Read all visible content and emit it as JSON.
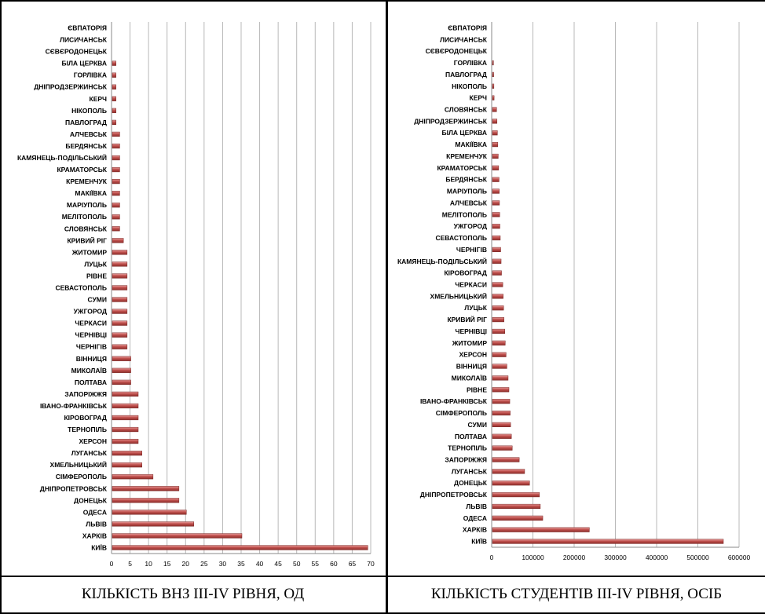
{
  "chart_data": [
    {
      "type": "bar",
      "orientation": "horizontal",
      "categories": [
        "КИЇВ",
        "ХАРКІВ",
        "ЛЬВІВ",
        "ОДЕСА",
        "ДОНЕЦЬК",
        "ДНІПРОПЕТРОВСЬК",
        "СІМФЕРОПОЛЬ",
        "ХМЕЛЬНИЦЬКИЙ",
        "ЛУГАНСЬК",
        "ХЕРСОН",
        "ТЕРНОПІЛЬ",
        "КІРОВОГРАД",
        "ІВАНО-ФРАНКІВСЬК",
        "ЗАПОРІЖЖЯ",
        "ПОЛТАВА",
        "МИКОЛАЇВ",
        "ВІННИЦЯ",
        "ЧЕРНІГІВ",
        "ЧЕРНІВЦІ",
        "ЧЕРКАСИ",
        "УЖГОРОД",
        "СУМИ",
        "СЕВАСТОПОЛЬ",
        "РІВНЕ",
        "ЛУЦЬК",
        "ЖИТОМИР",
        "КРИВИЙ РІГ",
        "СЛОВЯНСЬК",
        "МЕЛІТОПОЛЬ",
        "МАРІУПОЛЬ",
        "МАКІЇВКА",
        "КРЕМЕНЧУК",
        "КРАМАТОРСЬК",
        "КАМЯНЕЦЬ-ПОДІЛЬСЬКИЙ",
        "БЕРДЯНСЬК",
        "АЛЧЕВСЬК",
        "ПАВЛОГРАД",
        "НІКОПОЛЬ",
        "КЕРЧ",
        "ДНІПРОДЗЕРЖИНСЬК",
        "ГОРЛІВКА",
        "БІЛА ЦЕРКВА",
        "СЄВЄРОДОНЕЦЬК",
        "ЛИСИЧАНСЬК",
        "ЄВПАТОРІЯ"
      ],
      "values": [
        69,
        35,
        22,
        20,
        18,
        18,
        11,
        8,
        8,
        7,
        7,
        7,
        7,
        7,
        5,
        5,
        5,
        4,
        4,
        4,
        4,
        4,
        4,
        4,
        4,
        4,
        3,
        2,
        2,
        2,
        2,
        2,
        2,
        2,
        2,
        2,
        1,
        1,
        1,
        1,
        1,
        1,
        0,
        0,
        0
      ],
      "xlim": [
        0,
        70
      ],
      "xticks": [
        "0",
        "5",
        "10",
        "15",
        "20",
        "25",
        "30",
        "35",
        "40",
        "45",
        "50",
        "55",
        "60",
        "65",
        "70"
      ],
      "grid": true,
      "title": "КІЛЬКІСТЬ ВНЗ ІІІ-IV РІВНЯ, ОД",
      "bar_color": "#c0504d"
    },
    {
      "type": "bar",
      "orientation": "horizontal",
      "categories": [
        "КИЇВ",
        "ХАРКІВ",
        "ОДЕСА",
        "ЛЬВІВ",
        "ДНІПРОПЕТРОВСЬК",
        "ДОНЕЦЬК",
        "ЛУГАНСЬК",
        "ЗАПОРІЖЖЯ",
        "ТЕРНОПІЛЬ",
        "ПОЛТАВА",
        "СУМИ",
        "СІМФЕРОПОЛЬ",
        "ІВАНО-ФРАНКІВСЬК",
        "РІВНЕ",
        "МИКОЛАЇВ",
        "ВІННИЦЯ",
        "ХЕРСОН",
        "ЖИТОМИР",
        "ЧЕРНІВЦІ",
        "КРИВИЙ РІГ",
        "ЛУЦЬК",
        "ХМЕЛЬНИЦЬКИЙ",
        "ЧЕРКАСИ",
        "КІРОВОГРАД",
        "КАМЯНЕЦЬ-ПОДІЛЬСЬКИЙ",
        "ЧЕРНІГІВ",
        "СЕВАСТОПОЛЬ",
        "УЖГОРОД",
        "МЕЛІТОПОЛЬ",
        "АЛЧЕВСЬК",
        "МАРІУПОЛЬ",
        "БЕРДЯНСЬК",
        "КРАМАТОРСЬК",
        "КРЕМЕНЧУК",
        "МАКІЇВКА",
        "БІЛА ЦЕРКВА",
        "ДНІПРОДЗЕРЖИНСЬК",
        "СЛОВЯНСЬК",
        "КЕРЧ",
        "НІКОПОЛЬ",
        "ПАВЛОГРАД",
        "ГОРЛІВКА",
        "СЄВЄРОДОНЕЦЬК",
        "ЛИСИЧАНСЬК",
        "ЄВПАТОРІЯ"
      ],
      "values": [
        560000,
        235000,
        122000,
        116000,
        114000,
        90000,
        78000,
        65000,
        48000,
        46000,
        44000,
        43000,
        42000,
        40000,
        38000,
        35000,
        33000,
        31000,
        30000,
        28000,
        27000,
        26000,
        25000,
        22000,
        21000,
        20000,
        19000,
        18000,
        17500,
        17000,
        16500,
        16000,
        15000,
        14000,
        13000,
        12000,
        11000,
        10000,
        4000,
        3500,
        3000,
        2500,
        500,
        300,
        200
      ],
      "xlim": [
        0,
        600000
      ],
      "xticks": [
        "0",
        "100000",
        "200000",
        "300000",
        "400000",
        "500000",
        "600000"
      ],
      "grid": true,
      "title": "КІЛЬКІСТЬ СТУДЕНТІВ ІІІ-IV РІВНЯ, ОСІБ",
      "bar_color": "#c0504d"
    }
  ]
}
